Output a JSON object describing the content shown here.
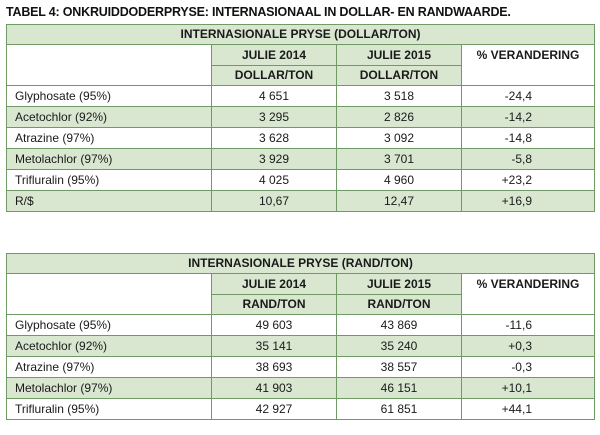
{
  "title": "TABEL 4: ONKRUIDDODERPRYSE: INTERNASIONAAL IN DOLLAR- EN RANDWAARDE.",
  "tables": [
    {
      "heading": "INTERNASIONALE PRYSE (DOLLAR/TON)",
      "columns": [
        "JULIE 2014",
        "JULIE 2015",
        "% VERANDERING"
      ],
      "units": [
        "DOLLAR/TON",
        "DOLLAR/TON"
      ],
      "rows": [
        {
          "name": "Glyphosate (95%)",
          "v2014": "4 651",
          "v2015": "3 518",
          "change": "-24,4"
        },
        {
          "name": "Acetochlor (92%)",
          "v2014": "3 295",
          "v2015": "2 826",
          "change": "-14,2"
        },
        {
          "name": "Atrazine (97%)",
          "v2014": "3 628",
          "v2015": "3 092",
          "change": "-14,8"
        },
        {
          "name": "Metolachlor (97%)",
          "v2014": "3 929",
          "v2015": "3 701",
          "change": "-5,8"
        },
        {
          "name": "Trifluralin (95%)",
          "v2014": "4 025",
          "v2015": "4 960",
          "change": "+23,2"
        },
        {
          "name": "R/$",
          "v2014": "10,67",
          "v2015": "12,47",
          "change": "+16,9"
        }
      ]
    },
    {
      "heading": "INTERNASIONALE PRYSE (RAND/TON)",
      "columns": [
        "JULIE 2014",
        "JULIE 2015",
        "% VERANDERING"
      ],
      "units": [
        "RAND/TON",
        "RAND/TON"
      ],
      "rows": [
        {
          "name": "Glyphosate (95%)",
          "v2014": "49 603",
          "v2015": "43 869",
          "change": "-11,6"
        },
        {
          "name": "Acetochlor (92%)",
          "v2014": "35 141",
          "v2015": "35 240",
          "change": "+0,3"
        },
        {
          "name": "Atrazine (97%)",
          "v2014": "38 693",
          "v2015": "38 557",
          "change": "-0,3"
        },
        {
          "name": "Metolachlor (97%)",
          "v2014": "41 903",
          "v2015": "46 151",
          "change": "+10,1"
        },
        {
          "name": "Trifluralin (95%)",
          "v2014": "42 927",
          "v2015": "61 851",
          "change": "+44,1"
        }
      ]
    }
  ]
}
